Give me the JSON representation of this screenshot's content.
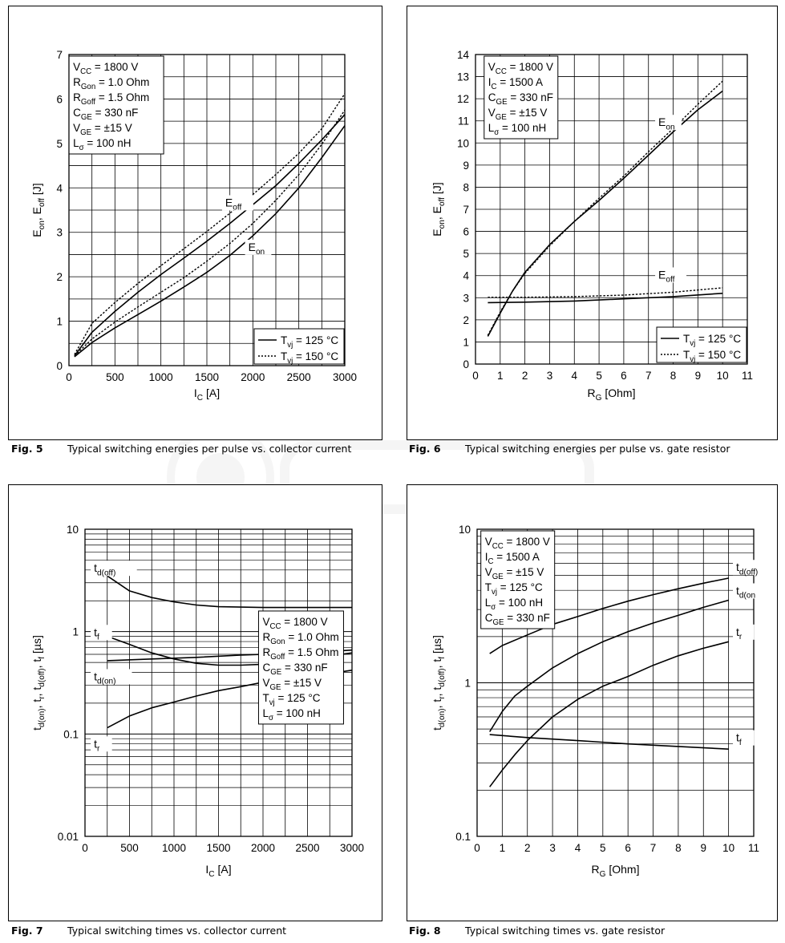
{
  "figures": [
    {
      "caption_num": "Fig. 5",
      "caption_text": "Typical switching energies per pulse vs. collector current"
    },
    {
      "caption_num": "Fig. 6",
      "caption_text": "Typical switching energies per pulse vs. gate resistor"
    },
    {
      "caption_num": "Fig. 7",
      "caption_text": "Typical switching times vs. collector current"
    },
    {
      "caption_num": "Fig. 8",
      "caption_text": "Typical switching times vs. gate resistor"
    }
  ],
  "chart_data": [
    {
      "type": "line",
      "xlabel": "I_C [A]",
      "ylabel": "E_on, E_off [J]",
      "xlim": [
        0,
        3000
      ],
      "ylim": [
        0,
        7
      ],
      "xticks": [
        0,
        500,
        1000,
        1500,
        2000,
        2500,
        3000
      ],
      "yticks": [
        0,
        1,
        2,
        3,
        4,
        5,
        6,
        7
      ],
      "grid": true,
      "conditions": [
        "V_CC = 1800 V",
        "R_Gon = 1.0 Ohm",
        "R_Goff = 1.5 Ohm",
        "C_GE = 330 nF",
        "V_GE = ±15 V",
        "L_σ = 100 nH"
      ],
      "legend": {
        "placement": "bottom-right",
        "entries": [
          {
            "label": "T_vj = 125 °C",
            "style": "solid"
          },
          {
            "label": "T_vj = 150 °C",
            "style": "dotted"
          }
        ]
      },
      "annotations": [
        "E_off",
        "E_on"
      ],
      "series": [
        {
          "name": "E_off",
          "temp": "125",
          "style": "solid",
          "x": [
            60,
            250,
            500,
            750,
            1000,
            1250,
            1500,
            1750,
            2000,
            2250,
            2500,
            2750,
            3000
          ],
          "values": [
            0.22,
            0.75,
            1.22,
            1.65,
            2.05,
            2.42,
            2.8,
            3.2,
            3.62,
            4.05,
            4.55,
            5.08,
            5.65
          ]
        },
        {
          "name": "E_off",
          "temp": "150",
          "style": "dotted",
          "x": [
            60,
            250,
            500,
            750,
            1000,
            1250,
            1500,
            1750,
            2000,
            2250,
            2500,
            2750,
            3000
          ],
          "values": [
            0.25,
            0.95,
            1.42,
            1.85,
            2.25,
            2.63,
            3.02,
            3.43,
            3.85,
            4.3,
            4.78,
            5.33,
            6.12
          ]
        },
        {
          "name": "E_on",
          "temp": "125",
          "style": "solid",
          "x": [
            60,
            250,
            500,
            750,
            1000,
            1250,
            1500,
            1750,
            2000,
            2250,
            2500,
            2750,
            3000
          ],
          "values": [
            0.2,
            0.52,
            0.85,
            1.15,
            1.45,
            1.77,
            2.1,
            2.48,
            2.92,
            3.42,
            4.0,
            4.68,
            5.4
          ]
        },
        {
          "name": "E_on",
          "temp": "150",
          "style": "dotted",
          "x": [
            60,
            250,
            500,
            750,
            1000,
            1250,
            1500,
            1750,
            2000,
            2250,
            2500,
            2750,
            3000
          ],
          "values": [
            0.22,
            0.6,
            0.98,
            1.32,
            1.65,
            1.98,
            2.35,
            2.75,
            3.2,
            3.72,
            4.3,
            4.98,
            5.75
          ]
        }
      ]
    },
    {
      "type": "line",
      "xlabel": "R_G [Ohm]",
      "ylabel": "E_on, E_off [J]",
      "xlim": [
        0,
        11
      ],
      "ylim": [
        0,
        14
      ],
      "xticks": [
        0,
        1,
        2,
        3,
        4,
        5,
        6,
        7,
        8,
        9,
        10,
        11
      ],
      "yticks": [
        0,
        1,
        2,
        3,
        4,
        5,
        6,
        7,
        8,
        9,
        10,
        11,
        12,
        13,
        14
      ],
      "grid": true,
      "conditions": [
        "V_CC = 1800 V",
        "I_C = 1500 A",
        "C_GE = 330 nF",
        "V_GE = ±15 V",
        "L_σ = 100 nH"
      ],
      "legend": {
        "placement": "bottom-right",
        "entries": [
          {
            "label": "T_vj = 125 °C",
            "style": "solid"
          },
          {
            "label": "T_vj = 150 °C",
            "style": "dotted"
          }
        ]
      },
      "annotations": [
        "E_on",
        "E_off"
      ],
      "series": [
        {
          "name": "E_on",
          "temp": "125",
          "style": "solid",
          "x": [
            0.5,
            1,
            1.5,
            2,
            3,
            4,
            5,
            6,
            7,
            8,
            9,
            10
          ],
          "values": [
            1.25,
            2.3,
            3.3,
            4.15,
            5.4,
            6.45,
            7.4,
            8.4,
            9.45,
            10.5,
            11.5,
            12.35
          ]
        },
        {
          "name": "E_on",
          "temp": "150",
          "style": "dotted",
          "x": [
            0.5,
            1,
            1.5,
            2,
            3,
            4,
            5,
            6,
            7,
            8,
            9,
            10
          ],
          "values": [
            1.3,
            2.35,
            3.3,
            4.1,
            5.35,
            6.45,
            7.5,
            8.5,
            9.6,
            10.65,
            11.75,
            12.8
          ]
        },
        {
          "name": "E_off",
          "temp": "125",
          "style": "solid",
          "x": [
            0.5,
            2,
            4,
            6,
            8,
            10
          ],
          "values": [
            2.78,
            2.8,
            2.85,
            2.95,
            3.05,
            3.2
          ]
        },
        {
          "name": "E_off",
          "temp": "150",
          "style": "dotted",
          "x": [
            0.5,
            2,
            4,
            6,
            8,
            10
          ],
          "values": [
            3.02,
            3.02,
            3.05,
            3.12,
            3.25,
            3.45
          ]
        }
      ]
    },
    {
      "type": "line",
      "xlabel": "I_C [A]",
      "ylabel": "t_d(on), t_r, t_d(off), t_f [µs]",
      "xlim": [
        0,
        3000
      ],
      "ylim": [
        0.01,
        10
      ],
      "yscale": "log",
      "xticks": [
        0,
        500,
        1000,
        1500,
        2000,
        2500,
        3000
      ],
      "yticks": [
        0.01,
        0.1,
        1,
        10
      ],
      "yticklabels": [
        "0.01",
        "0.1",
        "1",
        "10"
      ],
      "grid": true,
      "conditions": [
        "V_CC = 1800 V",
        "R_Gon = 1.0 Ohm",
        "R_Goff = 1.5 Ohm",
        "C_GE = 330 nF",
        "V_GE = ±15 V",
        "T_vj = 125 °C",
        "L_σ = 100 nH"
      ],
      "annotations": [
        "t_d(off)",
        "t_f",
        "t_d(on)",
        "t_r"
      ],
      "series": [
        {
          "name": "t_d(off)",
          "x": [
            250,
            500,
            750,
            1000,
            1250,
            1500,
            2000,
            2500,
            3000
          ],
          "values": [
            3.5,
            2.5,
            2.15,
            1.95,
            1.82,
            1.75,
            1.72,
            1.72,
            1.72
          ]
        },
        {
          "name": "t_f",
          "x": [
            250,
            500,
            750,
            1000,
            1250,
            1500,
            1750,
            2000,
            2250,
            2500,
            3000
          ],
          "values": [
            0.9,
            0.75,
            0.62,
            0.54,
            0.49,
            0.47,
            0.47,
            0.48,
            0.51,
            0.54,
            0.62
          ]
        },
        {
          "name": "t_d(on)",
          "x": [
            250,
            750,
            1250,
            1750,
            2250,
            2750,
            3000
          ],
          "values": [
            0.52,
            0.54,
            0.56,
            0.59,
            0.61,
            0.64,
            0.66
          ]
        },
        {
          "name": "t_r",
          "x": [
            250,
            500,
            750,
            1000,
            1250,
            1500,
            1750,
            2000,
            2250,
            2500,
            2750,
            3000
          ],
          "values": [
            0.115,
            0.15,
            0.18,
            0.205,
            0.235,
            0.265,
            0.29,
            0.32,
            0.345,
            0.37,
            0.39,
            0.42
          ]
        }
      ]
    },
    {
      "type": "line",
      "xlabel": "R_G [Ohm]",
      "ylabel": "t_d(on), t_r, t_d(off), t_f [µs]",
      "xlim": [
        0,
        11
      ],
      "ylim": [
        0.1,
        10
      ],
      "yscale": "log",
      "xticks": [
        0,
        1,
        2,
        3,
        4,
        5,
        6,
        7,
        8,
        9,
        10,
        11
      ],
      "yticks": [
        0.1,
        1,
        10
      ],
      "yticklabels": [
        "0.1",
        "1",
        "10"
      ],
      "grid": true,
      "conditions": [
        "V_CC = 1800 V",
        "I_C = 1500 A",
        "V_GE = ±15 V",
        "T_vj = 125 °C",
        "L_σ = 100 nH",
        "C_GE = 330 nF"
      ],
      "annotations": [
        "t_d(off)",
        "t_d(on",
        "t_r",
        "t_f"
      ],
      "series": [
        {
          "name": "t_d(off)",
          "x": [
            0.5,
            1,
            2,
            3,
            4,
            5,
            6,
            7,
            8,
            9,
            10
          ],
          "values": [
            1.55,
            1.75,
            2.05,
            2.4,
            2.7,
            3.05,
            3.4,
            3.75,
            4.1,
            4.45,
            4.8
          ]
        },
        {
          "name": "t_d(on)",
          "x": [
            0.5,
            1,
            1.5,
            2,
            3,
            4,
            5,
            6,
            7,
            8,
            9,
            10
          ],
          "values": [
            0.48,
            0.65,
            0.82,
            0.95,
            1.25,
            1.55,
            1.85,
            2.15,
            2.45,
            2.75,
            3.1,
            3.45
          ]
        },
        {
          "name": "t_r",
          "x": [
            0.5,
            1,
            1.5,
            2,
            3,
            4,
            5,
            6,
            7,
            8,
            9,
            10
          ],
          "values": [
            0.21,
            0.27,
            0.34,
            0.42,
            0.6,
            0.78,
            0.95,
            1.1,
            1.3,
            1.5,
            1.68,
            1.85
          ]
        },
        {
          "name": "t_f",
          "x": [
            0.5,
            2,
            4,
            6,
            8,
            10
          ],
          "values": [
            0.46,
            0.44,
            0.42,
            0.4,
            0.385,
            0.37
          ]
        }
      ]
    }
  ]
}
